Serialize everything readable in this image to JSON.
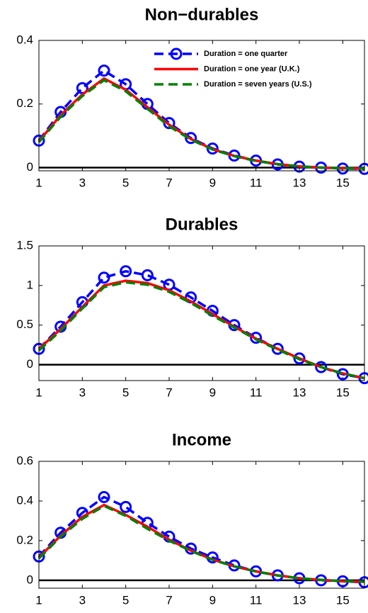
{
  "chart_data": [
    {
      "type": "line",
      "title": "Non−durables",
      "x": [
        1,
        2,
        3,
        4,
        5,
        6,
        7,
        8,
        9,
        10,
        11,
        12,
        13,
        14,
        15,
        16
      ],
      "xlim": [
        1,
        16
      ],
      "xticks": [
        1,
        3,
        5,
        7,
        9,
        11,
        13,
        15
      ],
      "ylim": [
        -0.01,
        0.4
      ],
      "yticks": [
        0,
        0.2,
        0.4
      ],
      "legend": "upper right",
      "series": [
        {
          "name": "Duration = one quarter",
          "color": "#0000ff",
          "linestyle": "dashed",
          "marker": "circle",
          "values": [
            0.085,
            0.175,
            0.25,
            0.305,
            0.262,
            0.2,
            0.14,
            0.093,
            0.06,
            0.038,
            0.022,
            0.01,
            0.003,
            0,
            -0.003,
            -0.004
          ]
        },
        {
          "name": "Duration = one year (U.K.)",
          "color": "#ff0000",
          "linestyle": "solid",
          "values": [
            0.083,
            0.165,
            0.23,
            0.28,
            0.245,
            0.19,
            0.135,
            0.09,
            0.058,
            0.037,
            0.022,
            0.011,
            0.004,
            0,
            -0.002,
            -0.003
          ]
        },
        {
          "name": "Duration = seven years (U.S.)",
          "color": "#008000",
          "linestyle": "dashed",
          "values": [
            0.08,
            0.16,
            0.225,
            0.275,
            0.24,
            0.185,
            0.13,
            0.088,
            0.057,
            0.036,
            0.021,
            0.011,
            0.004,
            0,
            -0.002,
            -0.003
          ]
        }
      ]
    },
    {
      "type": "line",
      "title": "Durables",
      "x": [
        1,
        2,
        3,
        4,
        5,
        6,
        7,
        8,
        9,
        10,
        11,
        12,
        13,
        14,
        15,
        16
      ],
      "xlim": [
        1,
        16
      ],
      "xticks": [
        1,
        3,
        5,
        7,
        9,
        11,
        13,
        15
      ],
      "ylim": [
        -0.2,
        1.5
      ],
      "yticks": [
        0,
        0.5,
        1,
        1.5
      ],
      "series": [
        {
          "color": "#0000ff",
          "linestyle": "dashed",
          "marker": "circle",
          "values": [
            0.2,
            0.48,
            0.79,
            1.1,
            1.18,
            1.13,
            1.01,
            0.85,
            0.68,
            0.5,
            0.34,
            0.2,
            0.08,
            -0.03,
            -0.12,
            -0.17
          ]
        },
        {
          "color": "#ff0000",
          "linestyle": "solid",
          "values": [
            0.2,
            0.45,
            0.73,
            1.0,
            1.06,
            1.03,
            0.94,
            0.8,
            0.64,
            0.48,
            0.33,
            0.2,
            0.08,
            -0.03,
            -0.11,
            -0.17
          ]
        },
        {
          "color": "#008000",
          "linestyle": "dashed",
          "values": [
            0.18,
            0.43,
            0.71,
            0.98,
            1.04,
            1.01,
            0.92,
            0.78,
            0.62,
            0.47,
            0.32,
            0.19,
            0.07,
            -0.03,
            -0.11,
            -0.17
          ]
        }
      ]
    },
    {
      "type": "line",
      "title": "Income",
      "x": [
        1,
        2,
        3,
        4,
        5,
        6,
        7,
        8,
        9,
        10,
        11,
        12,
        13,
        14,
        15,
        16
      ],
      "xlim": [
        1,
        16
      ],
      "xticks": [
        1,
        3,
        5,
        7,
        9,
        11,
        13,
        15
      ],
      "ylim": [
        -0.04,
        0.6
      ],
      "yticks": [
        0,
        0.2,
        0.4,
        0.6
      ],
      "series": [
        {
          "color": "#0000ff",
          "linestyle": "dashed",
          "marker": "circle",
          "values": [
            0.12,
            0.24,
            0.34,
            0.42,
            0.37,
            0.29,
            0.22,
            0.16,
            0.115,
            0.075,
            0.045,
            0.025,
            0.01,
            0,
            -0.005,
            -0.01
          ]
        },
        {
          "color": "#ff0000",
          "linestyle": "solid",
          "values": [
            0.115,
            0.225,
            0.32,
            0.38,
            0.33,
            0.27,
            0.205,
            0.15,
            0.105,
            0.07,
            0.045,
            0.025,
            0.01,
            0.002,
            -0.005,
            -0.008
          ]
        },
        {
          "color": "#008000",
          "linestyle": "dashed",
          "values": [
            0.11,
            0.22,
            0.31,
            0.375,
            0.325,
            0.26,
            0.2,
            0.148,
            0.103,
            0.07,
            0.044,
            0.024,
            0.01,
            0.002,
            -0.004,
            -0.008
          ]
        }
      ]
    }
  ]
}
